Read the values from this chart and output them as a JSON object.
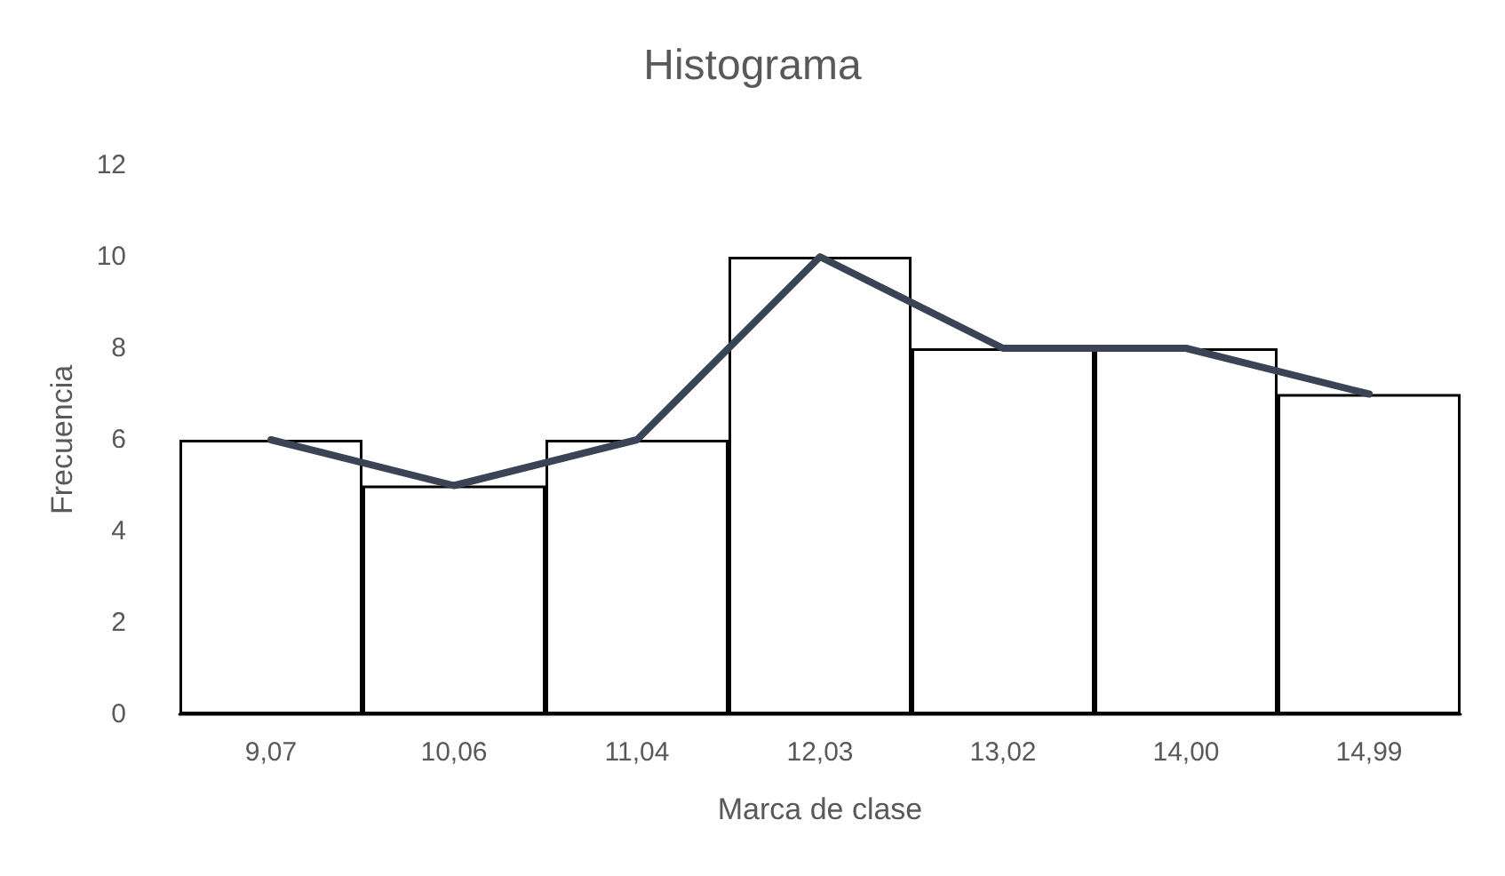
{
  "chart_data": {
    "type": "bar",
    "title": "Histograma",
    "xlabel": "Marca de clase",
    "ylabel": "Frecuencia",
    "categories": [
      "9,07",
      "10,06",
      "11,04",
      "12,03",
      "13,02",
      "14,00",
      "14,99"
    ],
    "series": [
      {
        "color": "#ffffff",
        "values": [
          6,
          5,
          6,
          10,
          8,
          8,
          7
        ]
      },
      {
        "type": "line",
        "color": "#3b4455",
        "values": [
          6,
          5,
          6,
          10,
          8,
          8,
          7
        ]
      }
    ],
    "ylim": [
      0,
      12
    ],
    "yticks": [
      0,
      2,
      4,
      6,
      8,
      10,
      12
    ],
    "grid": false,
    "marker": "none",
    "line_style": "solid"
  }
}
